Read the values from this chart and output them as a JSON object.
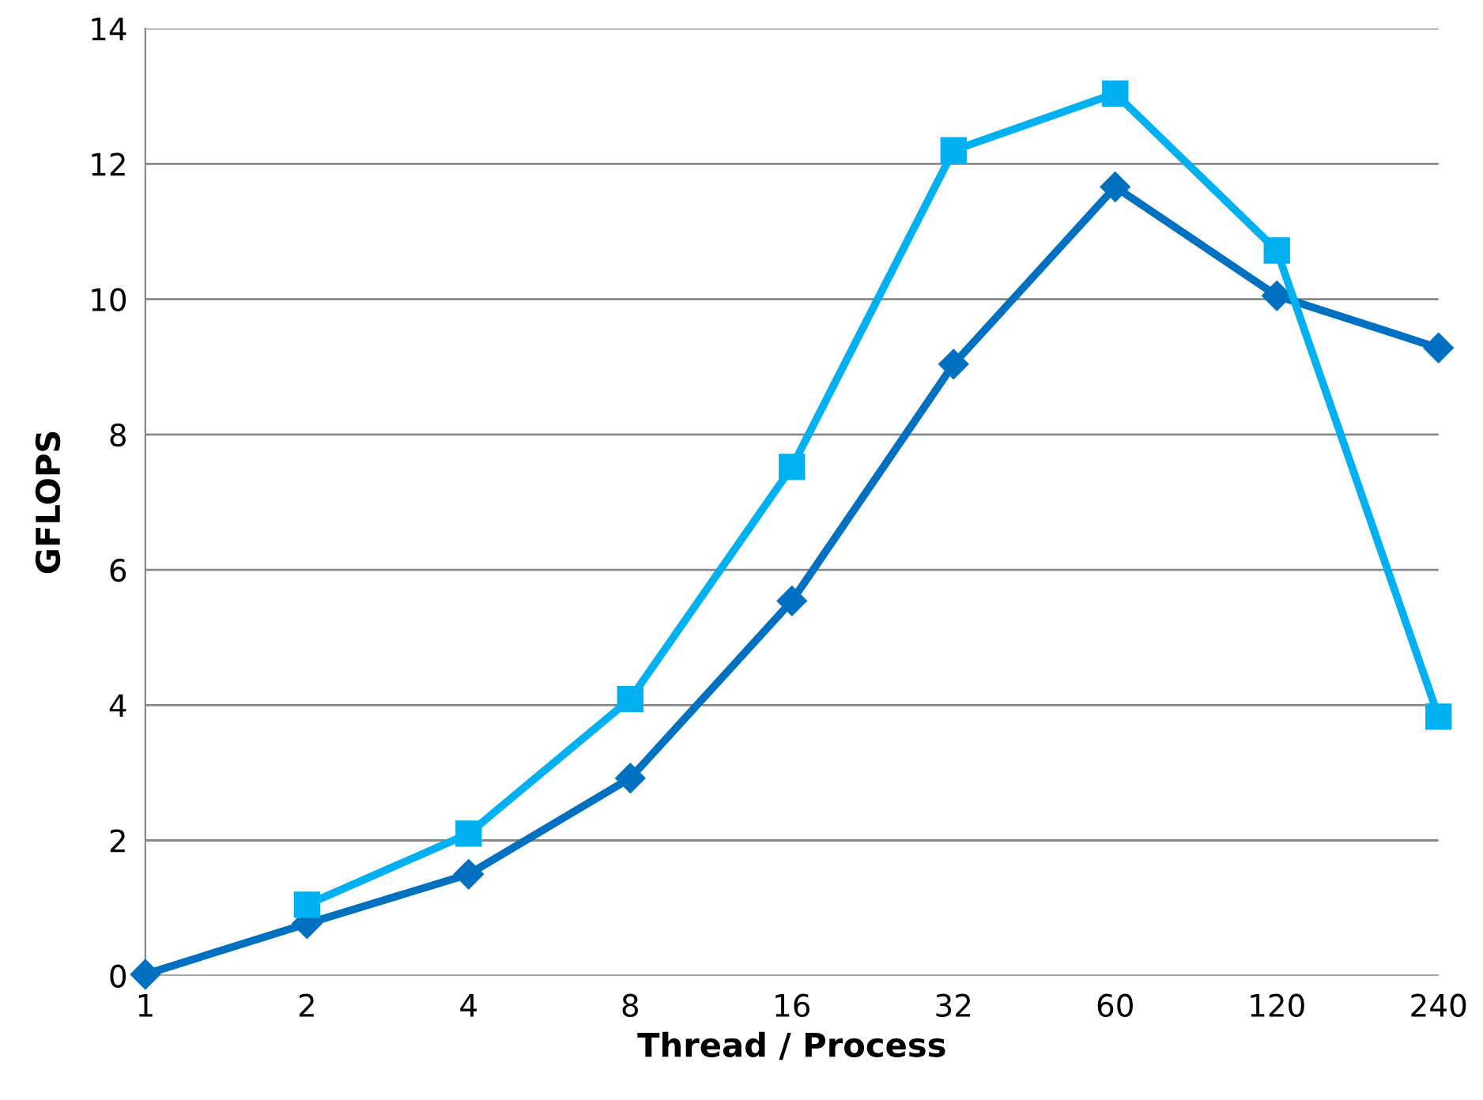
{
  "chart_data": {
    "type": "line",
    "xlabel": "Thread / Process",
    "ylabel": "GFLOPS",
    "categories": [
      "1",
      "2",
      "4",
      "8",
      "16",
      "32",
      "60",
      "120",
      "240"
    ],
    "ylim": [
      0,
      14
    ],
    "yticks": [
      0,
      2,
      4,
      6,
      8,
      10,
      12,
      14
    ],
    "grid": "y",
    "legend": false,
    "line_style": "solid",
    "series": [
      {
        "color": "#0070c0",
        "marker": "diamond",
        "values": [
          0.02,
          0.77,
          1.5,
          2.92,
          5.54,
          9.04,
          11.66,
          10.05,
          9.28
        ]
      },
      {
        "color": "#00b0f0",
        "marker": "square",
        "values": [
          null,
          1.05,
          2.1,
          4.09,
          7.52,
          12.2,
          13.04,
          10.72,
          3.83
        ]
      }
    ]
  }
}
